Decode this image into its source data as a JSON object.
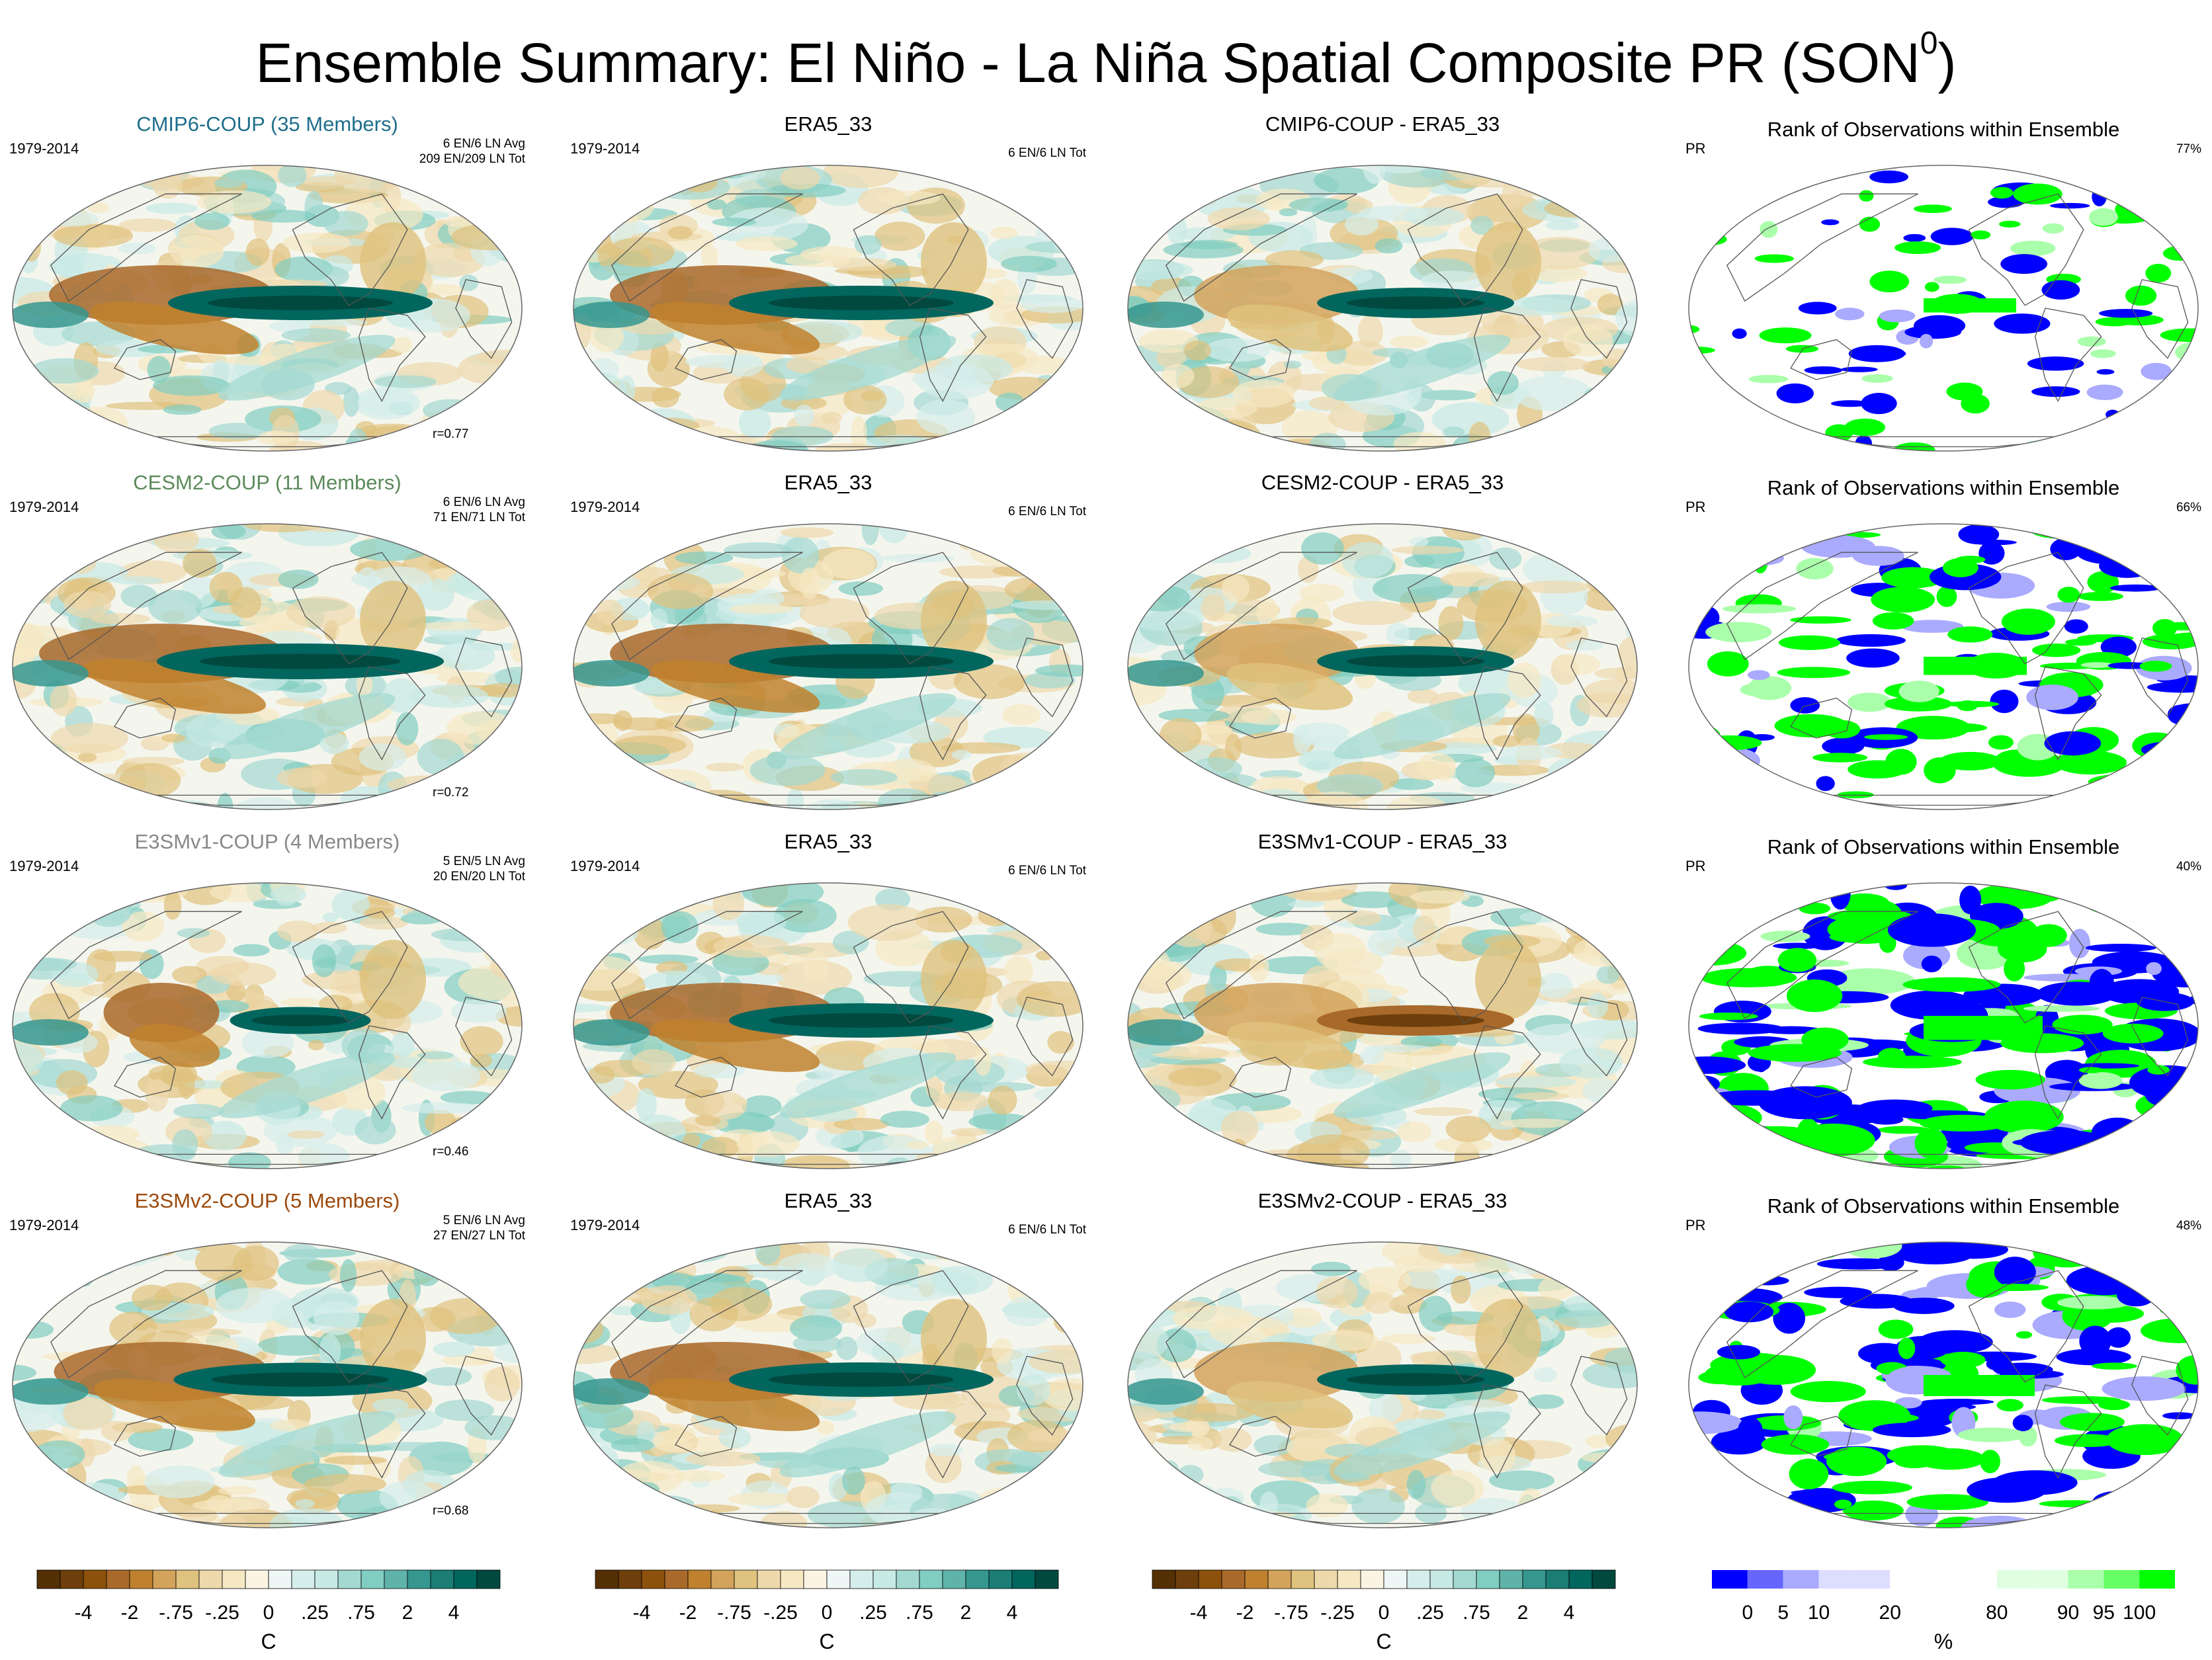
{
  "figure": {
    "title": "Ensemble Summary: El Niño - La Niña Spatial Composite PR (SON",
    "title_superscript": "0",
    "title_close": ")"
  },
  "rows": [
    {
      "model": "CMIP6-COUP (35 Members)",
      "color": "#1f6e8c",
      "period": "1979-2014",
      "avg_line1": "6 EN/6 LN Avg",
      "avg_line2": "209 EN/209 LN Tot",
      "corr": "r=0.77",
      "obs_title": "ERA5_33",
      "obs_period": "1979-2014",
      "obs_tot": "6 EN/6 LN Tot",
      "diff_title": "CMIP6-COUP - ERA5_33",
      "rank_title": "Rank of Observations within Ensemble",
      "rank_var": "PR",
      "rank_pct": "77%",
      "pacific_strength": 1.0,
      "rank_coverage": 0.25
    },
    {
      "model": "CESM2-COUP (11 Members)",
      "color": "#5b8a5b",
      "period": "1979-2014",
      "avg_line1": "6 EN/6 LN Avg",
      "avg_line2": "71 EN/71 LN Tot",
      "corr": "r=0.72",
      "obs_title": "ERA5_33",
      "obs_period": "1979-2014",
      "obs_tot": "6 EN/6 LN Tot",
      "diff_title": "CESM2-COUP - ERA5_33",
      "rank_title": "Rank of Observations within Ensemble",
      "rank_var": "PR",
      "rank_pct": "66%",
      "pacific_strength": 1.1,
      "rank_coverage": 0.45
    },
    {
      "model": "E3SMv1-COUP (4 Members)",
      "color": "#888888",
      "period": "1979-2014",
      "avg_line1": "5 EN/5 LN Avg",
      "avg_line2": "20 EN/20 LN Tot",
      "corr": "r=0.46",
      "obs_title": "ERA5_33",
      "obs_period": "1979-2014",
      "obs_tot": "6 EN/6 LN Tot",
      "diff_title": "E3SMv1-COUP - ERA5_33",
      "rank_title": "Rank of Observations within Ensemble",
      "rank_var": "PR",
      "rank_pct": "40%",
      "pacific_strength": 0.45,
      "rank_coverage": 0.75
    },
    {
      "model": "E3SMv2-COUP (5 Members)",
      "color": "#9c4a0c",
      "period": "1979-2014",
      "avg_line1": "5 EN/6 LN Avg",
      "avg_line2": "27 EN/27 LN Tot",
      "corr": "r=0.68",
      "obs_title": "ERA5_33",
      "obs_period": "1979-2014",
      "obs_tot": "6 EN/6 LN Tot",
      "diff_title": "E3SMv2-COUP - ERA5_33",
      "rank_title": "Rank of Observations within Ensemble",
      "rank_var": "PR",
      "rank_pct": "48%",
      "pacific_strength": 0.95,
      "rank_coverage": 0.6
    }
  ],
  "colorbars": {
    "brbg_colors": [
      "#543005",
      "#6e3f0b",
      "#8c510a",
      "#a9692a",
      "#bf812d",
      "#d3a35c",
      "#dfc27d",
      "#eed9ac",
      "#f6e8c3",
      "#fbf4e3",
      "#eef7f6",
      "#d5eeeb",
      "#c7eae5",
      "#a3d9d1",
      "#80cdc1",
      "#5fb3a9",
      "#35978f",
      "#1b7d74",
      "#01665e",
      "#01493f"
    ],
    "brbg_ticks": [
      "-4",
      "-2",
      "-.75",
      "-.25",
      "0",
      ".25",
      ".75",
      "2",
      "4"
    ],
    "brbg_tick_positions": [
      2,
      4,
      6,
      8,
      10,
      12,
      14,
      16,
      18
    ],
    "brbg_unit": "C",
    "rank_colors": [
      "#0000ff",
      "#6666ff",
      "#aaaaff",
      "#ddddff",
      "#ddddff",
      "#ffffff",
      "#ffffff",
      "#ffffff",
      "#e0ffe0",
      "#e0ffe0",
      "#aaffaa",
      "#66ff66",
      "#00ff00"
    ],
    "rank_ticks": [
      "0",
      "5",
      "10",
      "20",
      "80",
      "90",
      "95",
      "100"
    ],
    "rank_tick_positions": [
      1,
      2,
      3,
      5,
      8,
      10,
      11,
      12
    ],
    "rank_unit": "%"
  },
  "chart_data": {
    "type": "heatmap",
    "title": "Ensemble Summary: El Niño - La Niña Spatial Composite PR (SON0)",
    "layout": "4 rows x 4 columns of global maps",
    "columns": [
      "Ensemble mean composite",
      "ERA5_33 observations",
      "Ensemble minus ERA5_33",
      "Rank of Observations within Ensemble"
    ],
    "color_scale_composite": {
      "ticks": [
        -4,
        -2,
        -0.75,
        -0.25,
        0,
        0.25,
        0.75,
        2,
        4
      ],
      "unit": "C"
    },
    "color_scale_rank": {
      "ticks": [
        0,
        5,
        10,
        20,
        80,
        90,
        95,
        100
      ],
      "unit": "%"
    },
    "correlations": [
      {
        "model": "CMIP6-COUP",
        "r": 0.77,
        "rank_pct": 77
      },
      {
        "model": "CESM2-COUP",
        "r": 0.72,
        "rank_pct": 66
      },
      {
        "model": "E3SMv1-COUP",
        "r": 0.46,
        "rank_pct": 40
      },
      {
        "model": "E3SMv2-COUP",
        "r": 0.68,
        "rank_pct": 48
      }
    ]
  }
}
